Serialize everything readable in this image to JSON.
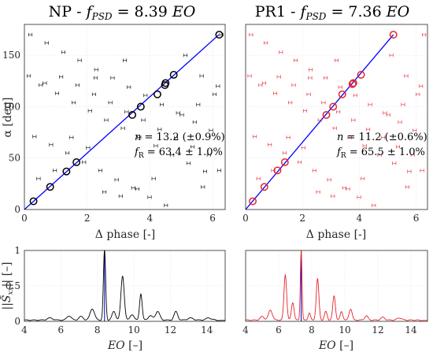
{
  "chart_data": [
    {
      "id": "np_scatter",
      "type": "scatter",
      "title": "NP - f_PSD = 8.39 EO",
      "title_parts": {
        "prefix": "NP - ",
        "fsym": "f",
        "fsub": "PSD",
        "eq": " = 8.39 ",
        "unit": "EO"
      },
      "xlabel": "Δ phase [-]",
      "ylabel": "α [deg]",
      "xlim": [
        0,
        6.4
      ],
      "ylim": [
        0,
        180
      ],
      "xticks": [
        "0",
        "2",
        "4",
        "6"
      ],
      "yticks": [
        "0",
        "50",
        "100",
        "150"
      ],
      "grid": true,
      "color": "#000000",
      "annotations": {
        "n_text": "n = 13.2 (±0.9%)",
        "fr_text": "f_R = 63.4 ± 1.0%",
        "n_val": "13.2 (±0.9%)",
        "fr_val": "63.4 ± 1.0%"
      },
      "fit_line": {
        "x": [
          0,
          6.2
        ],
        "y": [
          0,
          170
        ]
      },
      "highlighted": [
        [
          0.29,
          8
        ],
        [
          0.82,
          22
        ],
        [
          1.34,
          37
        ],
        [
          1.66,
          46
        ],
        [
          3.44,
          92
        ],
        [
          3.71,
          100
        ],
        [
          4.24,
          112
        ],
        [
          4.48,
          121
        ],
        [
          4.5,
          123
        ],
        [
          4.76,
          131
        ],
        [
          6.21,
          170
        ]
      ],
      "points": [
        [
          0.19,
          170
        ],
        [
          0.71,
          162
        ],
        [
          1.24,
          153
        ],
        [
          1.76,
          145
        ],
        [
          2.29,
          136
        ],
        [
          2.81,
          128
        ],
        [
          3.33,
          119
        ],
        [
          3.86,
          111
        ],
        [
          4.38,
          102
        ],
        [
          4.9,
          94
        ],
        [
          5.43,
          85
        ],
        [
          5.95,
          77
        ],
        [
          0.52,
          121
        ],
        [
          1.04,
          113
        ],
        [
          1.57,
          104
        ],
        [
          2.09,
          96
        ],
        [
          2.61,
          87
        ],
        [
          3.14,
          79
        ],
        [
          3.66,
          70
        ],
        [
          4.19,
          62
        ],
        [
          4.71,
          53
        ],
        [
          5.23,
          45
        ],
        [
          5.76,
          37
        ],
        [
          0.32,
          71
        ],
        [
          0.85,
          63
        ],
        [
          1.37,
          55
        ],
        [
          1.9,
          46
        ],
        [
          2.42,
          38
        ],
        [
          2.94,
          29
        ],
        [
          3.47,
          21
        ],
        [
          3.99,
          12
        ],
        [
          4.51,
          4
        ],
        [
          0.65,
          123
        ],
        [
          1.17,
          129
        ],
        [
          1.69,
          121
        ],
        [
          2.22,
          112
        ],
        [
          2.74,
          104
        ],
        [
          3.26,
          95
        ],
        [
          3.79,
          87
        ],
        [
          4.31,
          78
        ],
        [
          4.83,
          70
        ],
        [
          5.36,
          61
        ],
        [
          5.88,
          53
        ],
        [
          6.28,
          170
        ],
        [
          0.14,
          130
        ],
        [
          5.13,
          150
        ],
        [
          5.65,
          130
        ],
        [
          6.17,
          120
        ],
        [
          0.45,
          30
        ],
        [
          0.97,
          38
        ],
        [
          2.55,
          17
        ],
        [
          3.07,
          13
        ],
        [
          3.6,
          20
        ],
        [
          4.12,
          30
        ],
        [
          5.69,
          22
        ],
        [
          6.21,
          38
        ],
        [
          2.03,
          60
        ],
        [
          5.02,
          92
        ],
        [
          5.54,
          102
        ],
        [
          6.06,
          112
        ],
        [
          1.5,
          70
        ],
        [
          2.27,
          128
        ],
        [
          3.2,
          145
        ]
      ]
    },
    {
      "id": "pr1_scatter",
      "type": "scatter",
      "title": "PR1 - f_PSD = 7.36 EO",
      "title_parts": {
        "prefix": "PR1 - ",
        "fsym": "f",
        "fsub": "PSD",
        "eq": " = 7.36 ",
        "unit": "EO"
      },
      "xlabel": "Δ phase [-]",
      "ylabel": "",
      "xlim": [
        0,
        6.4
      ],
      "ylim": [
        0,
        180
      ],
      "xticks": [
        "0",
        "2",
        "4",
        "6"
      ],
      "yticks": [],
      "grid": true,
      "color": "#e5242b",
      "annotations": {
        "n_text": "n = 11.2 (±0.6%)",
        "fr_text": "f_R = 65.5 ± 1.0%",
        "n_val": "11.2 (±0.6%)",
        "fr_val": "65.5 ± 1.0%"
      },
      "fit_line": {
        "x": [
          0,
          5.2
        ],
        "y": [
          0,
          170
        ]
      },
      "highlighted": [
        [
          0.25,
          8
        ],
        [
          0.66,
          22
        ],
        [
          1.12,
          38
        ],
        [
          1.38,
          46
        ],
        [
          2.84,
          92
        ],
        [
          3.08,
          100
        ],
        [
          3.4,
          112
        ],
        [
          3.76,
          122
        ],
        [
          3.79,
          123
        ],
        [
          4.06,
          131
        ],
        [
          5.2,
          170
        ]
      ],
      "points": [
        [
          0.19,
          170
        ],
        [
          0.71,
          162
        ],
        [
          1.24,
          153
        ],
        [
          1.76,
          145
        ],
        [
          2.29,
          136
        ],
        [
          2.81,
          128
        ],
        [
          3.33,
          119
        ],
        [
          3.86,
          111
        ],
        [
          4.38,
          102
        ],
        [
          4.9,
          94
        ],
        [
          5.43,
          85
        ],
        [
          5.95,
          77
        ],
        [
          0.52,
          121
        ],
        [
          1.04,
          113
        ],
        [
          1.57,
          104
        ],
        [
          2.09,
          96
        ],
        [
          2.61,
          87
        ],
        [
          3.14,
          79
        ],
        [
          3.66,
          70
        ],
        [
          4.19,
          62
        ],
        [
          4.71,
          53
        ],
        [
          5.23,
          45
        ],
        [
          5.76,
          37
        ],
        [
          0.32,
          71
        ],
        [
          0.85,
          63
        ],
        [
          1.37,
          55
        ],
        [
          1.9,
          46
        ],
        [
          2.42,
          38
        ],
        [
          2.94,
          29
        ],
        [
          3.47,
          21
        ],
        [
          3.99,
          12
        ],
        [
          4.51,
          4
        ],
        [
          0.65,
          123
        ],
        [
          1.17,
          129
        ],
        [
          1.69,
          121
        ],
        [
          2.22,
          112
        ],
        [
          2.74,
          104
        ],
        [
          3.26,
          95
        ],
        [
          3.79,
          87
        ],
        [
          4.31,
          78
        ],
        [
          4.83,
          70
        ],
        [
          5.36,
          61
        ],
        [
          5.88,
          53
        ],
        [
          6.28,
          170
        ],
        [
          0.14,
          130
        ],
        [
          5.13,
          150
        ],
        [
          5.65,
          130
        ],
        [
          6.17,
          120
        ],
        [
          0.45,
          30
        ],
        [
          0.97,
          38
        ],
        [
          2.55,
          17
        ],
        [
          3.07,
          13
        ],
        [
          3.6,
          20
        ],
        [
          4.12,
          30
        ],
        [
          5.69,
          22
        ],
        [
          6.21,
          38
        ],
        [
          2.03,
          60
        ],
        [
          5.02,
          92
        ],
        [
          5.54,
          102
        ],
        [
          6.06,
          112
        ],
        [
          1.5,
          70
        ],
        [
          2.27,
          128
        ],
        [
          3.2,
          145
        ]
      ]
    },
    {
      "id": "np_spectrum",
      "type": "line",
      "xlabel": "EO [–]",
      "ylabel": "||S̃_xx|| [–]",
      "xlim": [
        4,
        15
      ],
      "ylim": [
        0,
        1
      ],
      "xticks": [
        "4",
        "6",
        "8",
        "10",
        "12",
        "14"
      ],
      "yticks": [
        "0",
        "0.5",
        "1"
      ],
      "grid": true,
      "color": "#000000",
      "marker_line": {
        "x": 8.39,
        "color": "#0000cc"
      },
      "base": 0.01,
      "peaks": [
        [
          8.39,
          0.99,
          0.06
        ],
        [
          9.38,
          0.62,
          0.09
        ],
        [
          10.38,
          0.37,
          0.07
        ],
        [
          7.72,
          0.16,
          0.12
        ],
        [
          8.9,
          0.12,
          0.1
        ],
        [
          11.3,
          0.12,
          0.12
        ],
        [
          12.3,
          0.12,
          0.1
        ],
        [
          6.45,
          0.06,
          0.12
        ],
        [
          7.1,
          0.05,
          0.12
        ],
        [
          5.4,
          0.03,
          0.15
        ],
        [
          10.9,
          0.06,
          0.12
        ],
        [
          13.1,
          0.03,
          0.15
        ],
        [
          14.1,
          0.03,
          0.15
        ],
        [
          9.9,
          0.08,
          0.1
        ]
      ]
    },
    {
      "id": "pr1_spectrum",
      "type": "line",
      "xlabel": "EO [–]",
      "ylabel": "",
      "xlim": [
        4,
        15
      ],
      "ylim": [
        0,
        1
      ],
      "xticks": [
        "4",
        "6",
        "8",
        "10",
        "12",
        "14"
      ],
      "yticks": [],
      "grid": true,
      "color": "#e5242b",
      "marker_line": {
        "x": 7.36,
        "color": "#0000cc"
      },
      "base": 0.01,
      "peaks": [
        [
          7.36,
          0.99,
          0.05
        ],
        [
          6.4,
          0.64,
          0.08
        ],
        [
          8.35,
          0.58,
          0.08
        ],
        [
          9.35,
          0.34,
          0.08
        ],
        [
          6.85,
          0.25,
          0.08
        ],
        [
          5.5,
          0.14,
          0.12
        ],
        [
          10.35,
          0.16,
          0.09
        ],
        [
          8.85,
          0.12,
          0.08
        ],
        [
          9.8,
          0.12,
          0.08
        ],
        [
          11.3,
          0.06,
          0.1
        ],
        [
          5.0,
          0.05,
          0.12
        ],
        [
          12.3,
          0.04,
          0.12
        ],
        [
          13.3,
          0.03,
          0.14
        ],
        [
          7.85,
          0.1,
          0.07
        ]
      ]
    }
  ]
}
